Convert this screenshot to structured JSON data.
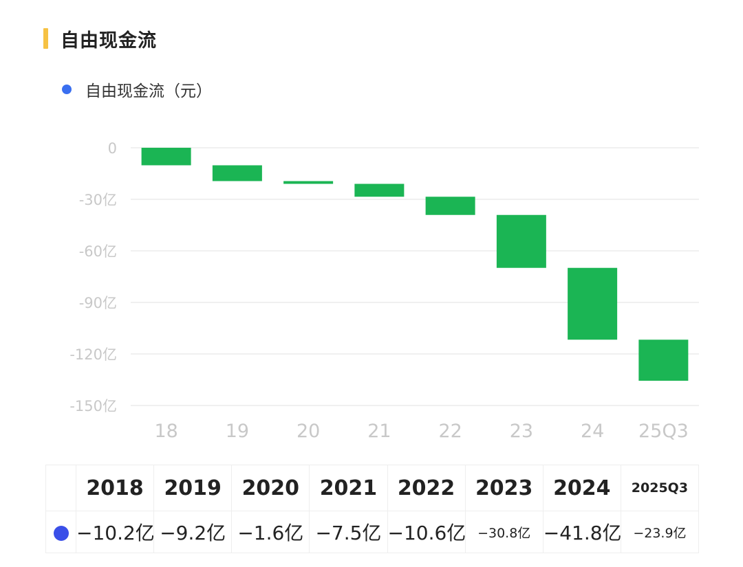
{
  "title": "自由现金流",
  "legend": {
    "label": "自由现金流（元）",
    "color": "#3a6ff0"
  },
  "chart_data": {
    "type": "bar",
    "subtype": "waterfall",
    "unit_label": "元",
    "categories": [
      "18",
      "19",
      "20",
      "21",
      "22",
      "23",
      "24",
      "25Q3"
    ],
    "values": [
      -10.2,
      -9.2,
      -1.6,
      -7.5,
      -10.6,
      -30.8,
      -41.8,
      -23.9
    ],
    "yticks": [
      "0",
      "-30亿",
      "-60亿",
      "-90亿",
      "-120亿",
      "-150亿"
    ],
    "ytick_values": [
      0,
      -30,
      -60,
      -90,
      -120,
      -150
    ],
    "ylim": [
      -150,
      0
    ],
    "grid": true,
    "bar_color": "#1bb554"
  },
  "table": {
    "headers": [
      "2018",
      "2019",
      "2020",
      "2021",
      "2022",
      "2023",
      "2024",
      "2025Q3"
    ],
    "values": [
      "−10.2亿",
      "−9.2亿",
      "−1.6亿",
      "−7.5亿",
      "−10.6亿",
      "−30.8亿",
      "−41.8亿",
      "−23.9亿"
    ],
    "marker_color": "#3a4fe8"
  }
}
